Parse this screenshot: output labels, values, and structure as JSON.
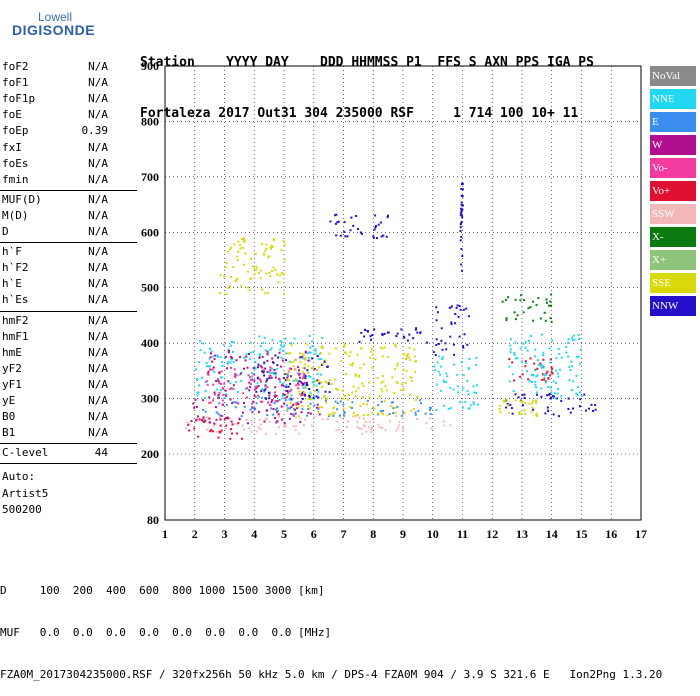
{
  "logo": {
    "top": "Lowell",
    "bottom": "DIGISONDE"
  },
  "header": {
    "line1": "Station    YYYY DAY    DDD HHMMSS P1  FFS S AXN PPS IGA PS",
    "line2": "Fortaleza 2017 Out31 304 235000 RSF     1 714 100 10+ 11"
  },
  "params": {
    "group1": [
      {
        "name": "foF2",
        "value": "N/A"
      },
      {
        "name": "foF1",
        "value": "N/A"
      },
      {
        "name": "foF1p",
        "value": "N/A"
      },
      {
        "name": "foE",
        "value": "N/A"
      },
      {
        "name": "foEp",
        "value": "0.39"
      },
      {
        "name": "fxI",
        "value": "N/A"
      },
      {
        "name": "foEs",
        "value": "N/A"
      },
      {
        "name": "fmin",
        "value": "N/A"
      }
    ],
    "group2": [
      {
        "name": "MUF(D)",
        "value": "N/A"
      },
      {
        "name": "M(D)",
        "value": "N/A"
      },
      {
        "name": "D",
        "value": "N/A"
      }
    ],
    "group3": [
      {
        "name": "h`F",
        "value": "N/A"
      },
      {
        "name": "h`F2",
        "value": "N/A"
      },
      {
        "name": "h`E",
        "value": "N/A"
      },
      {
        "name": "h`Es",
        "value": "N/A"
      }
    ],
    "group4": [
      {
        "name": "hmF2",
        "value": "N/A"
      },
      {
        "name": "hmF1",
        "value": "N/A"
      },
      {
        "name": "hmE",
        "value": "N/A"
      },
      {
        "name": "yF2",
        "value": "N/A"
      },
      {
        "name": "yF1",
        "value": "N/A"
      },
      {
        "name": "yE",
        "value": "N/A"
      },
      {
        "name": "B0",
        "value": "N/A"
      },
      {
        "name": "B1",
        "value": "N/A"
      }
    ],
    "clevel": {
      "name": "C-level",
      "value": "44"
    },
    "auto": [
      "Auto:",
      "Artist5",
      "500200"
    ]
  },
  "legend": [
    {
      "label": "NoVal",
      "color": "#8a8a8a"
    },
    {
      "label": "NNE",
      "color": "#22d8f0"
    },
    {
      "label": "E",
      "color": "#3b8ef0"
    },
    {
      "label": "W",
      "color": "#b0108f"
    },
    {
      "label": "Vo-",
      "color": "#f23aa0"
    },
    {
      "label": "Vo+",
      "color": "#e01030"
    },
    {
      "label": "SSW",
      "color": "#f4b8b8"
    },
    {
      "label": "X-",
      "color": "#0a7a10"
    },
    {
      "label": "X+",
      "color": "#8ec47a"
    },
    {
      "label": "SSE",
      "color": "#d8d80a"
    },
    {
      "label": "NNW",
      "color": "#2410c8"
    }
  ],
  "footer": {
    "line1": "D     100  200  400  600  800 1000 1500 3000 [km]",
    "line2": "MUF   0.0  0.0  0.0  0.0  0.0  0.0  0.0  0.0 [MHz]",
    "line3": "FZA0M_2017304235000.RSF / 320fx256h 50 kHz 5.0 km / DPS-4 FZA0M 904 / 3.9 S 321.6 E   Ion2Png 1.3.20"
  },
  "chart_data": {
    "type": "scatter",
    "title": "",
    "xlabel": "",
    "ylabel": "",
    "xlim": [
      1,
      17
    ],
    "ylim": [
      80,
      900
    ],
    "x_ticks": [
      1,
      2,
      3,
      4,
      5,
      6,
      7,
      8,
      9,
      10,
      11,
      12,
      13,
      14,
      15,
      16,
      17
    ],
    "y_ticks": [
      80,
      200,
      300,
      400,
      500,
      600,
      700,
      800,
      900
    ],
    "grid": true,
    "legend_position": "right",
    "clusters": [
      {
        "series": "SSW",
        "x_range": [
          1.6,
          10.6
        ],
        "y_range": [
          238,
          270
        ]
      },
      {
        "series": "Vo+",
        "x_range": [
          1.7,
          3.6
        ],
        "y_range": [
          228,
          268
        ]
      },
      {
        "series": "W",
        "x_range": [
          1.8,
          6.2
        ],
        "y_range": [
          255,
          300
        ]
      },
      {
        "series": "E",
        "x_range": [
          2.2,
          10.2
        ],
        "y_range": [
          270,
          300
        ]
      },
      {
        "series": "NNE",
        "x_range": [
          2.0,
          6.3
        ],
        "y_range": [
          300,
          415
        ]
      },
      {
        "series": "W",
        "x_range": [
          2.4,
          5.8
        ],
        "y_range": [
          300,
          390
        ]
      },
      {
        "series": "Vo-",
        "x_range": [
          2.3,
          5.8
        ],
        "y_range": [
          290,
          360
        ]
      },
      {
        "series": "NNW",
        "x_range": [
          4.0,
          6.5
        ],
        "y_range": [
          300,
          380
        ]
      },
      {
        "series": "SSE",
        "x_range": [
          2.8,
          5.0
        ],
        "y_range": [
          490,
          600
        ]
      },
      {
        "series": "SSE",
        "x_range": [
          5.0,
          9.5
        ],
        "y_range": [
          270,
          400
        ]
      },
      {
        "series": "NNW",
        "x_range": [
          7.5,
          9.8
        ],
        "y_range": [
          400,
          430
        ]
      },
      {
        "series": "NNW",
        "x_range": [
          6.5,
          8.5
        ],
        "y_range": [
          590,
          640
        ]
      },
      {
        "series": "NNW",
        "x_range": [
          10.9,
          11.0
        ],
        "y_range": [
          530,
          690
        ]
      },
      {
        "series": "NNW",
        "x_range": [
          10.0,
          11.2
        ],
        "y_range": [
          380,
          470
        ]
      },
      {
        "series": "NNE",
        "x_range": [
          10.0,
          11.5
        ],
        "y_range": [
          280,
          380
        ]
      },
      {
        "series": "X-",
        "x_range": [
          12.3,
          14.0
        ],
        "y_range": [
          440,
          490
        ]
      },
      {
        "series": "NNW",
        "x_range": [
          12.2,
          15.5
        ],
        "y_range": [
          270,
          310
        ]
      },
      {
        "series": "Vo+",
        "x_range": [
          12.5,
          14.0
        ],
        "y_range": [
          330,
          380
        ]
      },
      {
        "series": "NNE",
        "x_range": [
          12.5,
          15.0
        ],
        "y_range": [
          300,
          420
        ]
      },
      {
        "series": "SSE",
        "x_range": [
          12.2,
          13.5
        ],
        "y_range": [
          270,
          300
        ]
      }
    ]
  }
}
